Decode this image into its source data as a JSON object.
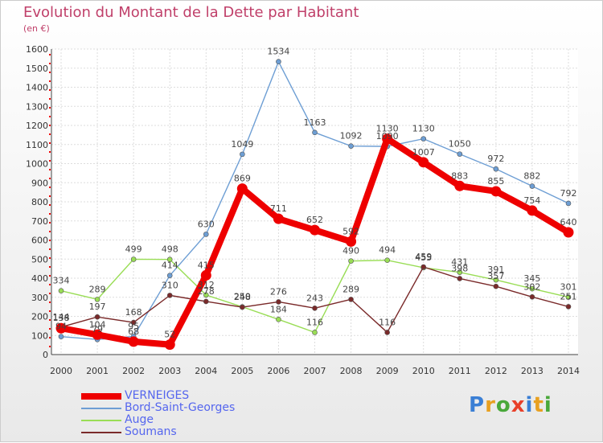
{
  "title": "Evolution du Montant de la Dette par Habitant",
  "subtitle": "(en €)",
  "logo": {
    "text": "Proxiti",
    "letter_colors": [
      "#3a7fd5",
      "#e8a020",
      "#49a83a",
      "#e8402a",
      "#3a7fd5",
      "#e8a020",
      "#49a83a"
    ]
  },
  "chart_data": {
    "type": "line",
    "title": "Evolution du Montant de la Dette par Habitant",
    "subtitle": "(en €)",
    "x": [
      "2000",
      "2001",
      "2002",
      "2003",
      "2004",
      "2005",
      "2006",
      "2007",
      "2008",
      "2009",
      "2010",
      "2011",
      "2012",
      "2013",
      "2014"
    ],
    "ylim": [
      0,
      1600
    ],
    "yticks": [
      0,
      100,
      200,
      300,
      400,
      500,
      600,
      700,
      800,
      900,
      1000,
      1100,
      1200,
      1300,
      1400,
      1500,
      1600
    ],
    "grid": true,
    "legend_position": "bottom-left",
    "series": [
      {
        "name": "VERNEIGES",
        "color": "#ee0000",
        "emphasis": true,
        "values": [
          138,
          104,
          68,
          52,
          415,
          869,
          711,
          652,
          592,
          1130,
          1007,
          883,
          855,
          754,
          640
        ]
      },
      {
        "name": "Bord-Saint-Georges",
        "color": "#6d9ed4",
        "emphasis": false,
        "values": [
          94,
          79,
          95,
          414,
          630,
          1049,
          1534,
          1163,
          1092,
          1090,
          1130,
          1050,
          972,
          882,
          792
        ]
      },
      {
        "name": "Auge",
        "color": "#99dd55",
        "emphasis": false,
        "values": [
          334,
          289,
          499,
          498,
          312,
          250,
          184,
          116,
          490,
          494,
          455,
          431,
          391,
          345,
          301
        ]
      },
      {
        "name": "Soumans",
        "color": "#7a2a2a",
        "emphasis": false,
        "values": [
          144,
          197,
          168,
          310,
          278,
          248,
          276,
          243,
          289,
          116,
          459,
          398,
          357,
          302,
          251
        ]
      }
    ]
  }
}
